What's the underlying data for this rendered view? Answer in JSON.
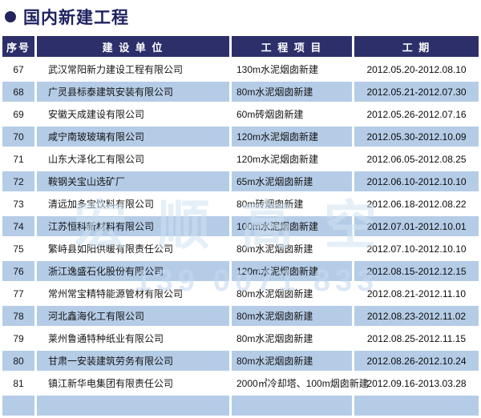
{
  "page": {
    "title": "国内新建工程"
  },
  "colors": {
    "header_bg": "#2d2f6b",
    "alt_row_bg": "#b5cce7",
    "title_color": "#1f2260",
    "bullet_color": "#23255f"
  },
  "watermark": {
    "line_1": "宏顺高空",
    "line_2": "139 0071 833"
  },
  "table": {
    "headers": [
      "序号",
      "建 设 单 位",
      "工 程 项 目",
      "工   期"
    ],
    "rows": [
      {
        "no": "67",
        "company": "武汉常阳新力建设工程有限公司",
        "project": "130m水泥烟囱新建",
        "period": "2012.05.20-2012.08.10"
      },
      {
        "no": "68",
        "company": "广灵县标泰建筑安装有限公司",
        "project": "80m水泥烟囱新建",
        "period": "2012.05.21-2012.07.30"
      },
      {
        "no": "69",
        "company": "安徽天成建设有限公司",
        "project": "60m砖烟囱新建",
        "period": "2012.05.26-2012.07.16"
      },
      {
        "no": "70",
        "company": "咸宁南玻玻璃有限公司",
        "project": "120m水泥烟囱新建",
        "period": "2012.05.30-2012.10.09"
      },
      {
        "no": "71",
        "company": "山东大泽化工有限公司",
        "project": "120m水泥烟囱新建",
        "period": "2012.06.05-2012.08.25"
      },
      {
        "no": "72",
        "company": "鞍钢关宝山选矿厂",
        "project": "65m水泥烟囱新建",
        "period": "2012.06.10-2012.10.10"
      },
      {
        "no": "73",
        "company": "清远加多宝饮料有限公司",
        "project": "80m砖烟囱新建",
        "period": "2012.06.18-2012.08.22"
      },
      {
        "no": "74",
        "company": "江苏恒科新材料有限公司",
        "project": "100m水泥烟囱新建",
        "period": "2012.07.01-2012.10.01"
      },
      {
        "no": "75",
        "company": "繁峙县如阳供暖有限责任公司",
        "project": "80m水泥烟囱新建",
        "period": "2012.07.10-2012.10.10"
      },
      {
        "no": "76",
        "company": "浙江逸盛石化股份有限公司",
        "project": "120m水泥烟囱新建",
        "period": "2012.08.15-2012.12.15"
      },
      {
        "no": "77",
        "company": "常州常宝精特能源管材有限公司",
        "project": "80m水泥烟囱新建",
        "period": "2012.08.21-2012.11.10"
      },
      {
        "no": "78",
        "company": "河北鑫海化工有限公司",
        "project": "80m水泥烟囱新建",
        "period": "2012.08.23-2012.11.02"
      },
      {
        "no": "79",
        "company": "莱州鲁通特种纸业有限公司",
        "project": "80m水泥烟囱新建",
        "period": "2012.08.25-2012.11.15"
      },
      {
        "no": "80",
        "company": "甘肃一安装建筑劳务有限公司",
        "project": "80m水泥烟囱新建",
        "period": "2012.08.26-2012.10.24"
      },
      {
        "no": "81",
        "company": "镇江新华电集团有限责任公司",
        "project": "2000㎡冷却塔、100m烟囱新建",
        "period": "2012.09.16-2013.03.28"
      }
    ]
  }
}
